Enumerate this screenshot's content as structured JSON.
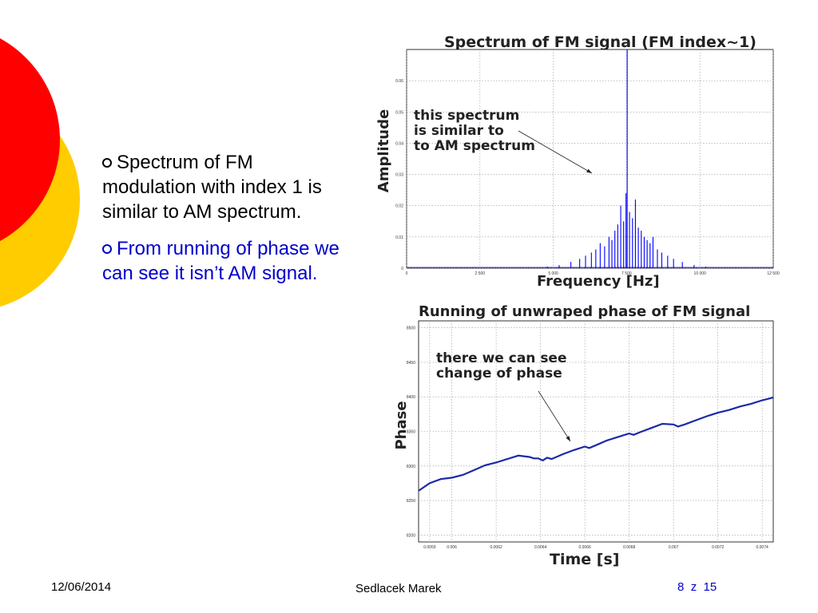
{
  "slide": {
    "bullets": [
      "Spectrum of FM modulation with index 1 is similar to AM spectrum.",
      "From running of phase we can see it isn’t AM signal."
    ],
    "footer": {
      "date": "12/06/2014",
      "author": "Sedlacek Marek",
      "page": "8",
      "page_sep": "z",
      "page_total": "15"
    },
    "colors": {
      "red_circle": "#ff0000",
      "yellow_circle": "#ffcc00",
      "bullet2_text": "#0000cc",
      "series": "#0000ff",
      "phase_series": "#1a2aa8"
    }
  },
  "chart_data": [
    {
      "type": "bar",
      "title": "Spectrum of FM signal (FM index~1)",
      "xlabel": "Frequency [Hz]",
      "ylabel": "Amplitude",
      "xlim": [
        0,
        12500
      ],
      "ylim": [
        0,
        0.07
      ],
      "xticks": [
        "0",
        "2 500",
        "5 000",
        "7 500",
        "10 000",
        "12 500"
      ],
      "yticks": [
        "0",
        "0.01",
        "0.02",
        "0.03",
        "0.04",
        "0.05",
        "0.06"
      ],
      "grid": true,
      "annotation": "this spectrum\nis similar to\nto AM spectrum",
      "x": [
        4800,
        5200,
        5600,
        5900,
        6100,
        6300,
        6450,
        6600,
        6750,
        6900,
        7000,
        7100,
        7200,
        7300,
        7400,
        7480,
        7520,
        7600,
        7700,
        7800,
        7900,
        8000,
        8100,
        8200,
        8300,
        8400,
        8550,
        8700,
        8900,
        9100,
        9400,
        9800,
        10200
      ],
      "values": [
        0.0005,
        0.001,
        0.002,
        0.003,
        0.004,
        0.005,
        0.006,
        0.008,
        0.007,
        0.01,
        0.009,
        0.012,
        0.014,
        0.02,
        0.015,
        0.024,
        0.07,
        0.018,
        0.016,
        0.022,
        0.013,
        0.012,
        0.01,
        0.009,
        0.008,
        0.01,
        0.006,
        0.005,
        0.004,
        0.003,
        0.002,
        0.001,
        0.0005
      ]
    },
    {
      "type": "line",
      "title": "Running of unwraped phase of FM signal",
      "xlabel": "Time [s]",
      "ylabel": "Phase",
      "xlim": [
        0.00585,
        0.00745
      ],
      "ylim": [
        8190,
        8510
      ],
      "xticks": [
        "0.0059",
        "0.006",
        "0.0062",
        "0.0064",
        "0.0066",
        "0.0068",
        "0.007",
        "0.0072",
        "0.0074"
      ],
      "yticks": [
        "8200",
        "8250",
        "8300",
        "8350",
        "8400",
        "8450",
        "8500"
      ],
      "grid": true,
      "annotation": "there we can see\nchange of phase",
      "x": [
        0.00585,
        0.0059,
        0.00595,
        0.006,
        0.00605,
        0.0061,
        0.00615,
        0.0062,
        0.00625,
        0.0063,
        0.00635,
        0.00637,
        0.00639,
        0.00641,
        0.00643,
        0.00645,
        0.0065,
        0.00655,
        0.0066,
        0.00662,
        0.00665,
        0.0067,
        0.00675,
        0.0068,
        0.00682,
        0.00685,
        0.0069,
        0.00695,
        0.007,
        0.00702,
        0.00705,
        0.0071,
        0.00715,
        0.0072,
        0.00725,
        0.0073,
        0.00735,
        0.0074,
        0.00745
      ],
      "values": [
        8264,
        8275,
        8281,
        8283,
        8287,
        8294,
        8301,
        8305,
        8310,
        8315,
        8313,
        8311,
        8311,
        8308,
        8312,
        8310,
        8317,
        8323,
        8328,
        8326,
        8330,
        8337,
        8342,
        8347,
        8345,
        8349,
        8355,
        8361,
        8360,
        8357,
        8360,
        8366,
        8372,
        8377,
        8381,
        8386,
        8390,
        8395,
        8399
      ]
    }
  ]
}
